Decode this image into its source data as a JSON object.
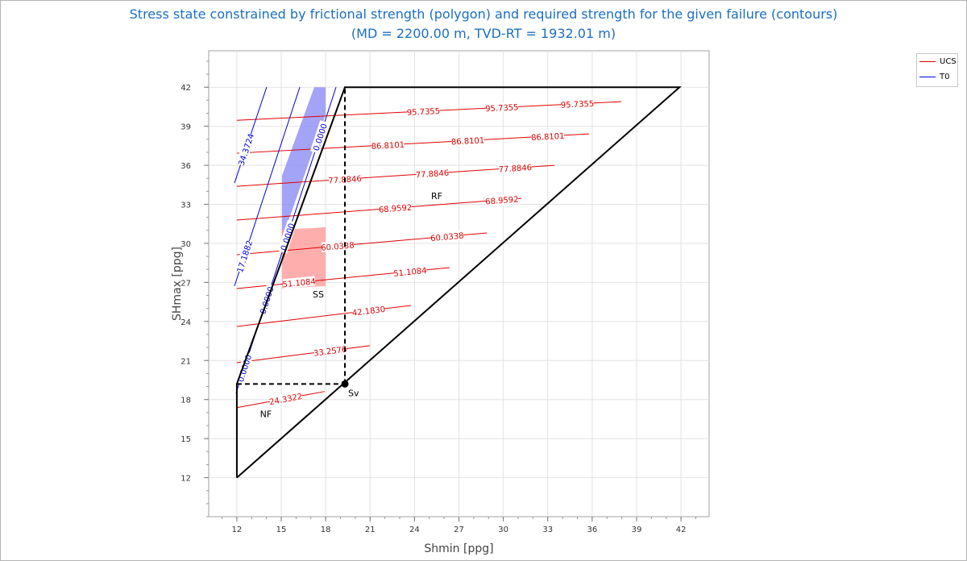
{
  "chart_data": {
    "type": "line",
    "title": "Stress state constrained by frictional strength (polygon) and required strength for the given failure (contours)",
    "subtitle": "(MD = 2200.00 m, TVD-RT = 1932.01 m)",
    "xlabel": "Shmin [ppg]",
    "ylabel": "SHmax [ppg]",
    "xlim": [
      10.1,
      43.9
    ],
    "ylim": [
      9.0,
      44.8
    ],
    "xticks": [
      12,
      15,
      18,
      21,
      24,
      27,
      30,
      33,
      36,
      39,
      42
    ],
    "yticks": [
      12,
      15,
      18,
      21,
      24,
      27,
      30,
      33,
      36,
      39,
      42
    ],
    "grid": true,
    "legend": {
      "placement": "top-right-outside",
      "entries": [
        {
          "label": "UCS",
          "color": "#e00000"
        },
        {
          "label": "T0",
          "color": "#0000e0"
        }
      ]
    },
    "polygon": [
      [
        12,
        12
      ],
      [
        12,
        19.2
      ],
      [
        19.3,
        42
      ],
      [
        41.9,
        42
      ],
      [
        12,
        12
      ]
    ],
    "sv_lines": [
      [
        [
          12,
          19.2
        ],
        [
          19.3,
          19.2
        ]
      ],
      [
        [
          19.3,
          19.2
        ],
        [
          19.3,
          42
        ]
      ]
    ],
    "sv_point": {
      "label": "Sv",
      "x": 19.3,
      "y": 19.2
    },
    "regions": [
      {
        "label": "NF",
        "x": 13.96,
        "y": 16.9
      },
      {
        "label": "SS",
        "x": 17.5,
        "y": 26.1
      },
      {
        "label": "RF",
        "x": 25.5,
        "y": 33.65
      }
    ],
    "shaded": [
      {
        "name": "blue-zone",
        "color": "#8c8cf5",
        "points": [
          [
            17.23,
            42
          ],
          [
            17.99,
            42
          ],
          [
            17.99,
            39.9
          ],
          [
            15.05,
            30.31
          ],
          [
            15.05,
            35.2
          ]
        ]
      },
      {
        "name": "red-zone",
        "color": "#ff9a9a",
        "points": [
          [
            15.05,
            31.05
          ],
          [
            17.99,
            31.24
          ],
          [
            17.99,
            26.72
          ],
          [
            15.05,
            26.53
          ]
        ]
      }
    ],
    "ucs_contours": [
      {
        "label": "95.7355",
        "start": [
          12,
          39.46
        ],
        "end": [
          37.97,
          40.89
        ],
        "label_x": [
          24.6,
          29.9,
          35.0
        ]
      },
      {
        "label": "86.8101",
        "start": [
          12,
          36.93
        ],
        "end": [
          35.79,
          38.41
        ],
        "label_x": [
          22.2,
          27.6,
          33.0
        ]
      },
      {
        "label": "77.8846",
        "start": [
          12,
          34.39
        ],
        "end": [
          33.45,
          36.0
        ],
        "label_x": [
          19.3,
          25.2,
          30.8
        ]
      },
      {
        "label": "68.9592",
        "start": [
          12,
          31.79
        ],
        "end": [
          31.22,
          33.46
        ],
        "label_x": [
          22.7,
          29.9
        ]
      },
      {
        "label": "60.0338",
        "start": [
          12,
          29.13
        ],
        "end": [
          28.88,
          30.8
        ],
        "label_x": [
          18.8,
          26.2
        ]
      },
      {
        "label": "51.1084",
        "start": [
          12,
          26.53
        ],
        "end": [
          26.37,
          28.14
        ],
        "label_x": [
          16.2,
          23.7
        ]
      },
      {
        "label": "42.1830",
        "start": [
          12,
          23.62
        ],
        "end": [
          23.76,
          25.23
        ],
        "label_x": [
          20.9
        ]
      },
      {
        "label": "33.2576",
        "start": [
          12,
          20.84
        ],
        "end": [
          20.98,
          22.14
        ],
        "label_x": [
          18.3
        ]
      },
      {
        "label": "24.3322",
        "start": [
          12,
          17.38
        ],
        "end": [
          17.93,
          18.62
        ],
        "label_x": [
          15.3
        ]
      }
    ],
    "t0_contours": [
      {
        "label": "34.3724",
        "start": [
          11.84,
          34.64
        ],
        "end": [
          14.01,
          42
        ],
        "label_x": [
          12.6
        ]
      },
      {
        "label": "17.1882",
        "start": [
          11.84,
          26.72
        ],
        "end": [
          16.25,
          42
        ],
        "label_x": [
          12.5
        ]
      },
      {
        "label": "0.0000",
        "start": [
          11.95,
          18.5
        ],
        "end": [
          18.7,
          42
        ],
        "label_x": [
          12.5,
          14.0,
          15.4,
          17.6
        ]
      }
    ]
  }
}
